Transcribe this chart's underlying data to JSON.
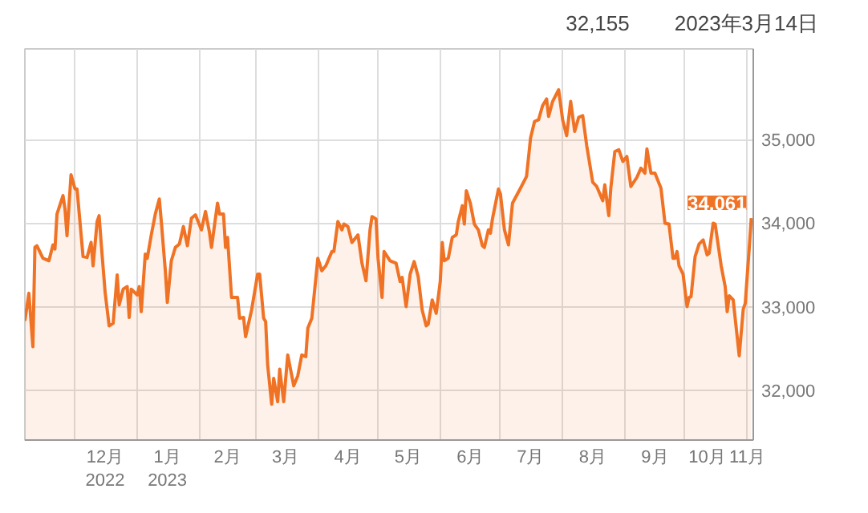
{
  "chart_data": {
    "type": "area",
    "x": [
      "2022-11-06",
      "2022-11-08",
      "2022-11-10",
      "2022-11-11",
      "2022-11-12",
      "2022-11-15",
      "2022-11-18",
      "2022-11-20",
      "2022-11-21",
      "2022-11-22",
      "2022-11-25",
      "2022-11-26",
      "2022-11-27",
      "2022-11-29",
      "2022-12-01",
      "2022-12-02",
      "2022-12-05",
      "2022-12-07",
      "2022-12-09",
      "2022-12-10",
      "2022-12-12",
      "2022-12-13",
      "2022-12-14",
      "2022-12-16",
      "2022-12-18",
      "2022-12-20",
      "2022-12-22",
      "2022-12-23",
      "2022-12-25",
      "2022-12-27",
      "2022-12-28",
      "2022-12-29",
      "2023-01-01",
      "2023-01-02",
      "2023-01-03",
      "2023-01-05",
      "2023-01-06",
      "2023-01-08",
      "2023-01-10",
      "2023-01-12",
      "2023-01-13",
      "2023-01-15",
      "2023-01-16",
      "2023-01-18",
      "2023-01-20",
      "2023-01-22",
      "2023-01-24",
      "2023-01-26",
      "2023-01-28",
      "2023-01-30",
      "2023-02-02",
      "2023-02-04",
      "2023-02-06",
      "2023-02-07",
      "2023-02-10",
      "2023-02-11",
      "2023-02-13",
      "2023-02-14",
      "2023-02-15",
      "2023-02-17",
      "2023-02-20",
      "2023-02-21",
      "2023-02-23",
      "2023-02-24",
      "2023-02-27",
      "2023-03-02",
      "2023-03-03",
      "2023-03-05",
      "2023-03-06",
      "2023-03-07",
      "2023-03-09",
      "2023-03-10",
      "2023-03-12",
      "2023-03-13",
      "2023-03-15",
      "2023-03-17",
      "2023-03-20",
      "2023-03-22",
      "2023-03-24",
      "2023-03-26",
      "2023-03-27",
      "2023-03-29",
      "2023-04-01",
      "2023-04-03",
      "2023-04-05",
      "2023-04-08",
      "2023-04-09",
      "2023-04-11",
      "2023-04-13",
      "2023-04-14",
      "2023-04-16",
      "2023-04-18",
      "2023-04-21",
      "2023-04-23",
      "2023-04-25",
      "2023-04-27",
      "2023-04-28",
      "2023-04-30",
      "2023-05-01",
      "2023-05-03",
      "2023-05-04",
      "2023-05-07",
      "2023-05-10",
      "2023-05-12",
      "2023-05-13",
      "2023-05-15",
      "2023-05-17",
      "2023-05-19",
      "2023-05-21",
      "2023-05-23",
      "2023-05-25",
      "2023-05-26",
      "2023-05-28",
      "2023-05-30",
      "2023-06-01",
      "2023-06-02",
      "2023-06-03",
      "2023-06-05",
      "2023-06-07",
      "2023-06-09",
      "2023-06-10",
      "2023-06-12",
      "2023-06-13",
      "2023-06-14",
      "2023-06-16",
      "2023-06-18",
      "2023-06-20",
      "2023-06-22",
      "2023-06-23",
      "2023-06-25",
      "2023-06-26",
      "2023-06-27",
      "2023-06-30",
      "2023-07-01",
      "2023-07-03",
      "2023-07-05",
      "2023-07-07",
      "2023-07-11",
      "2023-07-14",
      "2023-07-16",
      "2023-07-18",
      "2023-07-20",
      "2023-07-22",
      "2023-07-24",
      "2023-07-25",
      "2023-07-27",
      "2023-07-30",
      "2023-08-01",
      "2023-08-03",
      "2023-08-05",
      "2023-08-07",
      "2023-08-09",
      "2023-08-11",
      "2023-08-13",
      "2023-08-16",
      "2023-08-18",
      "2023-08-21",
      "2023-08-22",
      "2023-08-24",
      "2023-08-25",
      "2023-08-27",
      "2023-08-29",
      "2023-08-31",
      "2023-09-02",
      "2023-09-04",
      "2023-09-07",
      "2023-09-09",
      "2023-09-11",
      "2023-09-12",
      "2023-09-14",
      "2023-09-16",
      "2023-09-19",
      "2023-09-21",
      "2023-09-23",
      "2023-09-25",
      "2023-09-26",
      "2023-09-27",
      "2023-09-28",
      "2023-09-30",
      "2023-10-02",
      "2023-10-03",
      "2023-10-04",
      "2023-10-06",
      "2023-10-08",
      "2023-10-10",
      "2023-10-12",
      "2023-10-13",
      "2023-10-15",
      "2023-10-16",
      "2023-10-19",
      "2023-10-21",
      "2023-10-22",
      "2023-10-23",
      "2023-10-25",
      "2023-10-28",
      "2023-10-30",
      "2023-10-31",
      "2023-11-02",
      "2023-11-03"
    ],
    "series": [
      {
        "color": "#f07224",
        "values": [
          32830,
          33160,
          32520,
          33710,
          33730,
          33580,
          33550,
          33740,
          33690,
          34110,
          34330,
          34170,
          33850,
          34580,
          34410,
          34410,
          33600,
          33590,
          33770,
          33490,
          34020,
          34090,
          33770,
          33170,
          32770,
          32800,
          33380,
          33020,
          33210,
          33240,
          32870,
          33210,
          33140,
          33240,
          32940,
          33630,
          33580,
          33860,
          34110,
          34290,
          34020,
          33430,
          33050,
          33550,
          33710,
          33750,
          33960,
          33730,
          34060,
          34100,
          33920,
          34140,
          33890,
          33710,
          34240,
          34110,
          34110,
          33710,
          33830,
          33110,
          33110,
          32860,
          32870,
          32640,
          32960,
          33390,
          33390,
          32860,
          32820,
          32300,
          31830,
          32140,
          31860,
          32250,
          31860,
          32420,
          32050,
          32170,
          32420,
          32400,
          32740,
          32860,
          33580,
          33430,
          33490,
          33660,
          33660,
          34020,
          33920,
          33990,
          33960,
          33770,
          33860,
          33520,
          33310,
          33920,
          34080,
          34050,
          33580,
          33110,
          33660,
          33550,
          33520,
          33300,
          33350,
          33000,
          33390,
          33540,
          33360,
          32960,
          32770,
          32790,
          33080,
          32920,
          33300,
          33770,
          33550,
          33580,
          33830,
          33860,
          34020,
          34210,
          33990,
          34390,
          34240,
          33990,
          33920,
          33730,
          33710,
          33920,
          33880,
          34050,
          34410,
          34350,
          33920,
          33740,
          34240,
          34420,
          34560,
          35020,
          35220,
          35240,
          35410,
          35490,
          35280,
          35460,
          35600,
          35240,
          35050,
          35460,
          35100,
          35270,
          35290,
          34930,
          34490,
          34440,
          34270,
          34460,
          34090,
          34420,
          34860,
          34880,
          34740,
          34800,
          34440,
          34550,
          34660,
          34600,
          34890,
          34600,
          34600,
          34420,
          34000,
          33990,
          33580,
          33580,
          33660,
          33490,
          33390,
          33000,
          33110,
          33120,
          33600,
          33750,
          33800,
          33620,
          33640,
          34000,
          33990,
          33490,
          33240,
          32940,
          33130,
          33080,
          32410,
          32970,
          33040,
          33710,
          34061
        ]
      }
    ],
    "xlim": [
      "2022-11-06",
      "2023-11-04"
    ],
    "xticks": [
      {
        "value": "2022-12-01",
        "label": null
      },
      {
        "value": "2022-12-16",
        "label": "12月\n2022"
      },
      {
        "value": "2023-01-01",
        "label": null
      },
      {
        "value": "2023-01-16",
        "label": "1月\n2023"
      },
      {
        "value": "2023-02-01",
        "label": null
      },
      {
        "value": "2023-02-15",
        "label": "2月"
      },
      {
        "value": "2023-03-01",
        "label": null
      },
      {
        "value": "2023-03-16",
        "label": "3月"
      },
      {
        "value": "2023-04-01",
        "label": null
      },
      {
        "value": "2023-04-16",
        "label": "4月"
      },
      {
        "value": "2023-05-01",
        "label": null
      },
      {
        "value": "2023-05-16",
        "label": "5月"
      },
      {
        "value": "2023-06-01",
        "label": null
      },
      {
        "value": "2023-06-16",
        "label": "6月"
      },
      {
        "value": "2023-07-01",
        "label": null
      },
      {
        "value": "2023-07-16",
        "label": "7月"
      },
      {
        "value": "2023-08-01",
        "label": null
      },
      {
        "value": "2023-08-16",
        "label": "8月"
      },
      {
        "value": "2023-09-01",
        "label": null
      },
      {
        "value": "2023-09-16",
        "label": "9月"
      },
      {
        "value": "2023-10-01",
        "label": null
      },
      {
        "value": "2023-10-12",
        "label": "10月"
      },
      {
        "value": "2023-11-01",
        "label": "11月"
      }
    ],
    "ylim": [
      31400,
      36090
    ],
    "yticks": [
      {
        "value": 32000,
        "label": "32,000"
      },
      {
        "value": 33000,
        "label": "33,000"
      },
      {
        "value": 34000,
        "label": "34,000"
      },
      {
        "value": 35000,
        "label": "35,000"
      }
    ],
    "grid": true,
    "annotations": [
      "32,155",
      "2023年3月14日",
      {
        "text": "34,061",
        "x": "2023-11-03",
        "y": 34061
      }
    ]
  }
}
